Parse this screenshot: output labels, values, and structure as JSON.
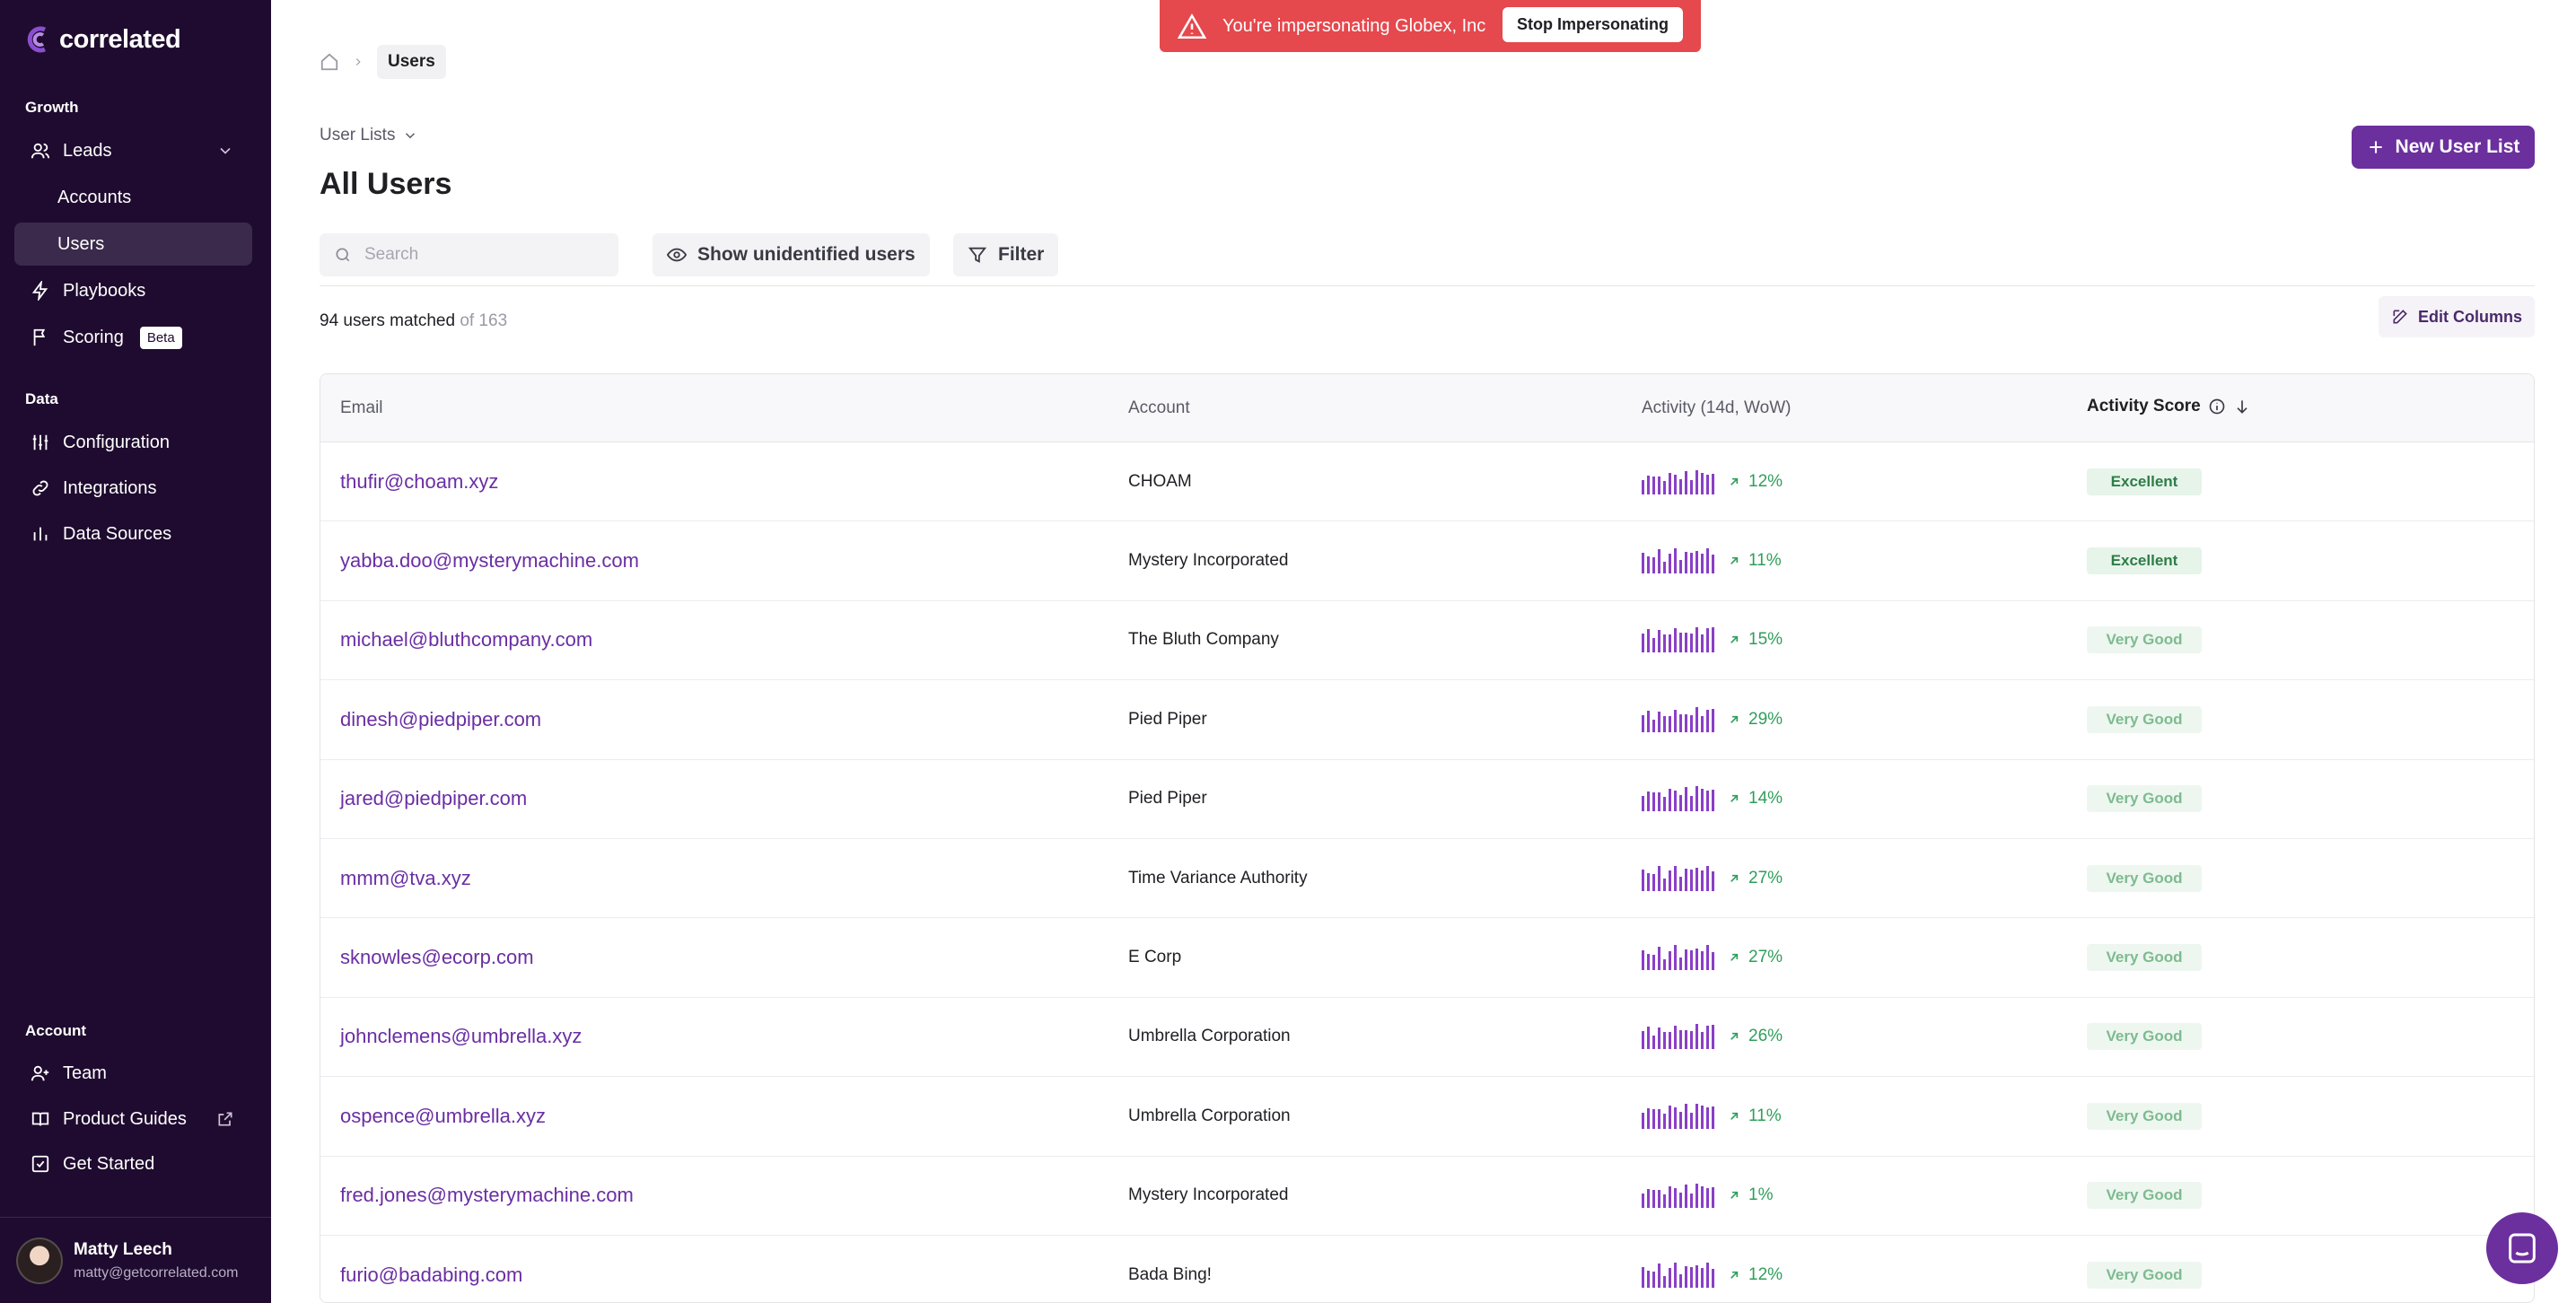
{
  "sidebar": {
    "logo": "correlated",
    "sections": {
      "growth": "Growth",
      "data": "Data",
      "account": "Account"
    },
    "items": {
      "leads": "Leads",
      "accounts": "Accounts",
      "users": "Users",
      "playbooks": "Playbooks",
      "scoring": "Scoring",
      "scoring_badge": "Beta",
      "configuration": "Configuration",
      "integrations": "Integrations",
      "data_sources": "Data Sources",
      "team": "Team",
      "product_guides": "Product Guides",
      "get_started": "Get Started"
    },
    "user": {
      "name": "Matty Leech",
      "email": "matty@getcorrelated.com"
    }
  },
  "banner": {
    "message": "You're impersonating Globex, Inc",
    "button": "Stop Impersonating"
  },
  "breadcrumb": {
    "current": "Users"
  },
  "header": {
    "user_lists": "User Lists",
    "title": "All Users",
    "new_button": "New User List"
  },
  "toolbar": {
    "search_placeholder": "Search",
    "show_unidentified": "Show unidentified users",
    "filter": "Filter",
    "edit_columns": "Edit Columns"
  },
  "matched": {
    "count_text": "94 users matched",
    "total_text": "of 163"
  },
  "table": {
    "columns": {
      "email": "Email",
      "account": "Account",
      "activity": "Activity (14d, WoW)",
      "score": "Activity Score"
    },
    "rows": [
      {
        "email": "thufir@choam.xyz",
        "account": "CHOAM",
        "change": "12%",
        "score": "Excellent",
        "level": "excellent"
      },
      {
        "email": "yabba.doo@mysterymachine.com",
        "account": "Mystery Incorporated",
        "change": "11%",
        "score": "Excellent",
        "level": "excellent"
      },
      {
        "email": "michael@bluthcompany.com",
        "account": "The Bluth Company",
        "change": "15%",
        "score": "Very Good",
        "level": "verygood"
      },
      {
        "email": "dinesh@piedpiper.com",
        "account": "Pied Piper",
        "change": "29%",
        "score": "Very Good",
        "level": "verygood"
      },
      {
        "email": "jared@piedpiper.com",
        "account": "Pied Piper",
        "change": "14%",
        "score": "Very Good",
        "level": "verygood"
      },
      {
        "email": "mmm@tva.xyz",
        "account": "Time Variance Authority",
        "change": "27%",
        "score": "Very Good",
        "level": "verygood"
      },
      {
        "email": "sknowles@ecorp.com",
        "account": "E Corp",
        "change": "27%",
        "score": "Very Good",
        "level": "verygood"
      },
      {
        "email": "johnclemens@umbrella.xyz",
        "account": "Umbrella Corporation",
        "change": "26%",
        "score": "Very Good",
        "level": "verygood"
      },
      {
        "email": "ospence@umbrella.xyz",
        "account": "Umbrella Corporation",
        "change": "11%",
        "score": "Very Good",
        "level": "verygood"
      },
      {
        "email": "fred.jones@mysterymachine.com",
        "account": "Mystery Incorporated",
        "change": "1%",
        "score": "Very Good",
        "level": "verygood"
      },
      {
        "email": "furio@badabing.com",
        "account": "Bada Bing!",
        "change": "12%",
        "score": "Very Good",
        "level": "verygood"
      }
    ]
  },
  "colors": {
    "sidebar_bg": "#1f0b2f",
    "accent": "#6c2f9e",
    "banner": "#e5484d",
    "positive": "#2f9e5b"
  },
  "icons": [
    "home-icon",
    "chevron-right-icon",
    "chevron-down-icon",
    "plus-icon",
    "search-icon",
    "eye-icon",
    "filter-icon",
    "edit-icon",
    "info-icon",
    "arrow-down-icon",
    "arrow-up-right-icon",
    "warning-icon",
    "users-icon",
    "bolt-icon",
    "flag-icon",
    "sliders-icon",
    "link-icon",
    "bar-chart-icon",
    "user-plus-icon",
    "book-icon",
    "external-link-icon",
    "checkbox-icon",
    "chat-icon"
  ]
}
